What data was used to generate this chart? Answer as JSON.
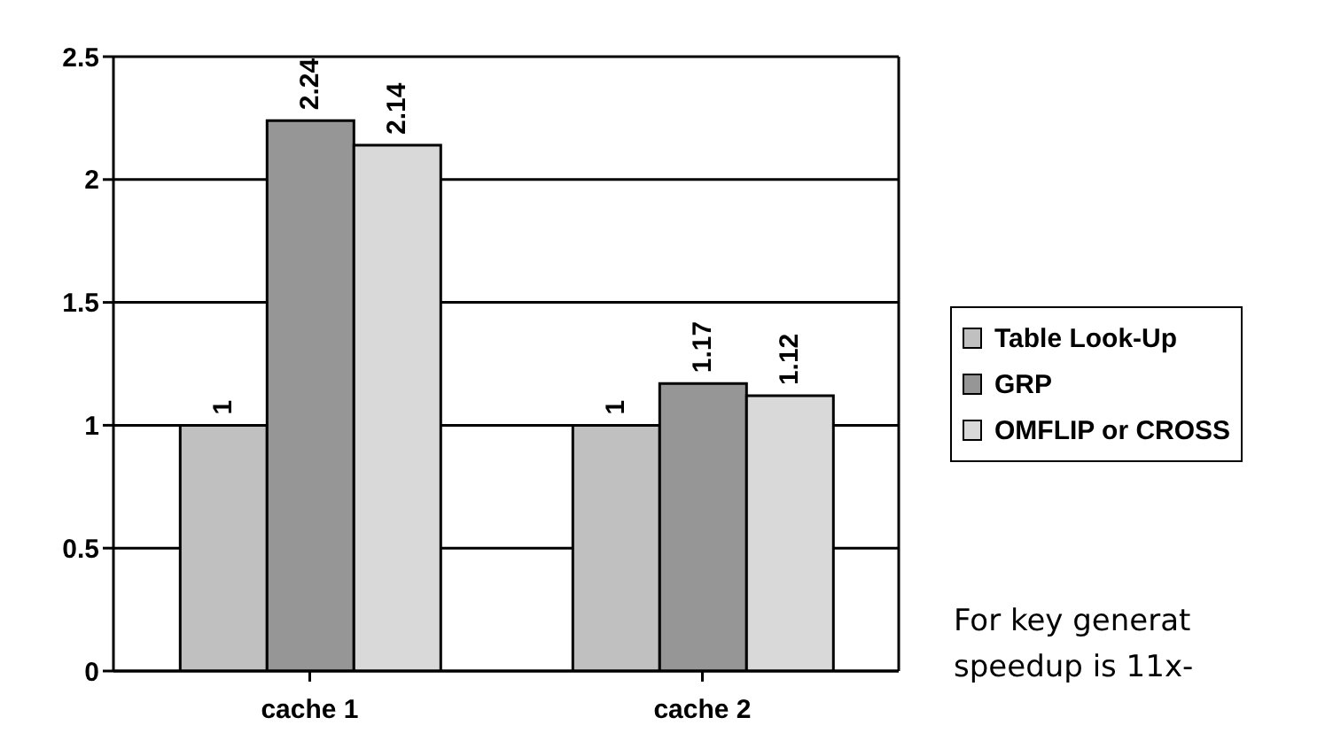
{
  "chart_data": {
    "type": "bar",
    "categories": [
      "cache 1",
      "cache 2"
    ],
    "series": [
      {
        "name": "Table Look-Up",
        "color": "#c0c0c0",
        "values": [
          1,
          1
        ]
      },
      {
        "name": "GRP",
        "color": "#969696",
        "values": [
          2.24,
          1.17
        ]
      },
      {
        "name": "OMFLIP or CROSS",
        "color": "#d9d9d9",
        "values": [
          2.14,
          1.12
        ]
      }
    ],
    "ylim": [
      0,
      2.5
    ],
    "yticks": [
      0,
      0.5,
      1,
      1.5,
      2,
      2.5
    ],
    "grid": "y",
    "legend": "right",
    "data_labels": true,
    "annotations": [
      "For key generat",
      "speedup is 11x-"
    ]
  }
}
